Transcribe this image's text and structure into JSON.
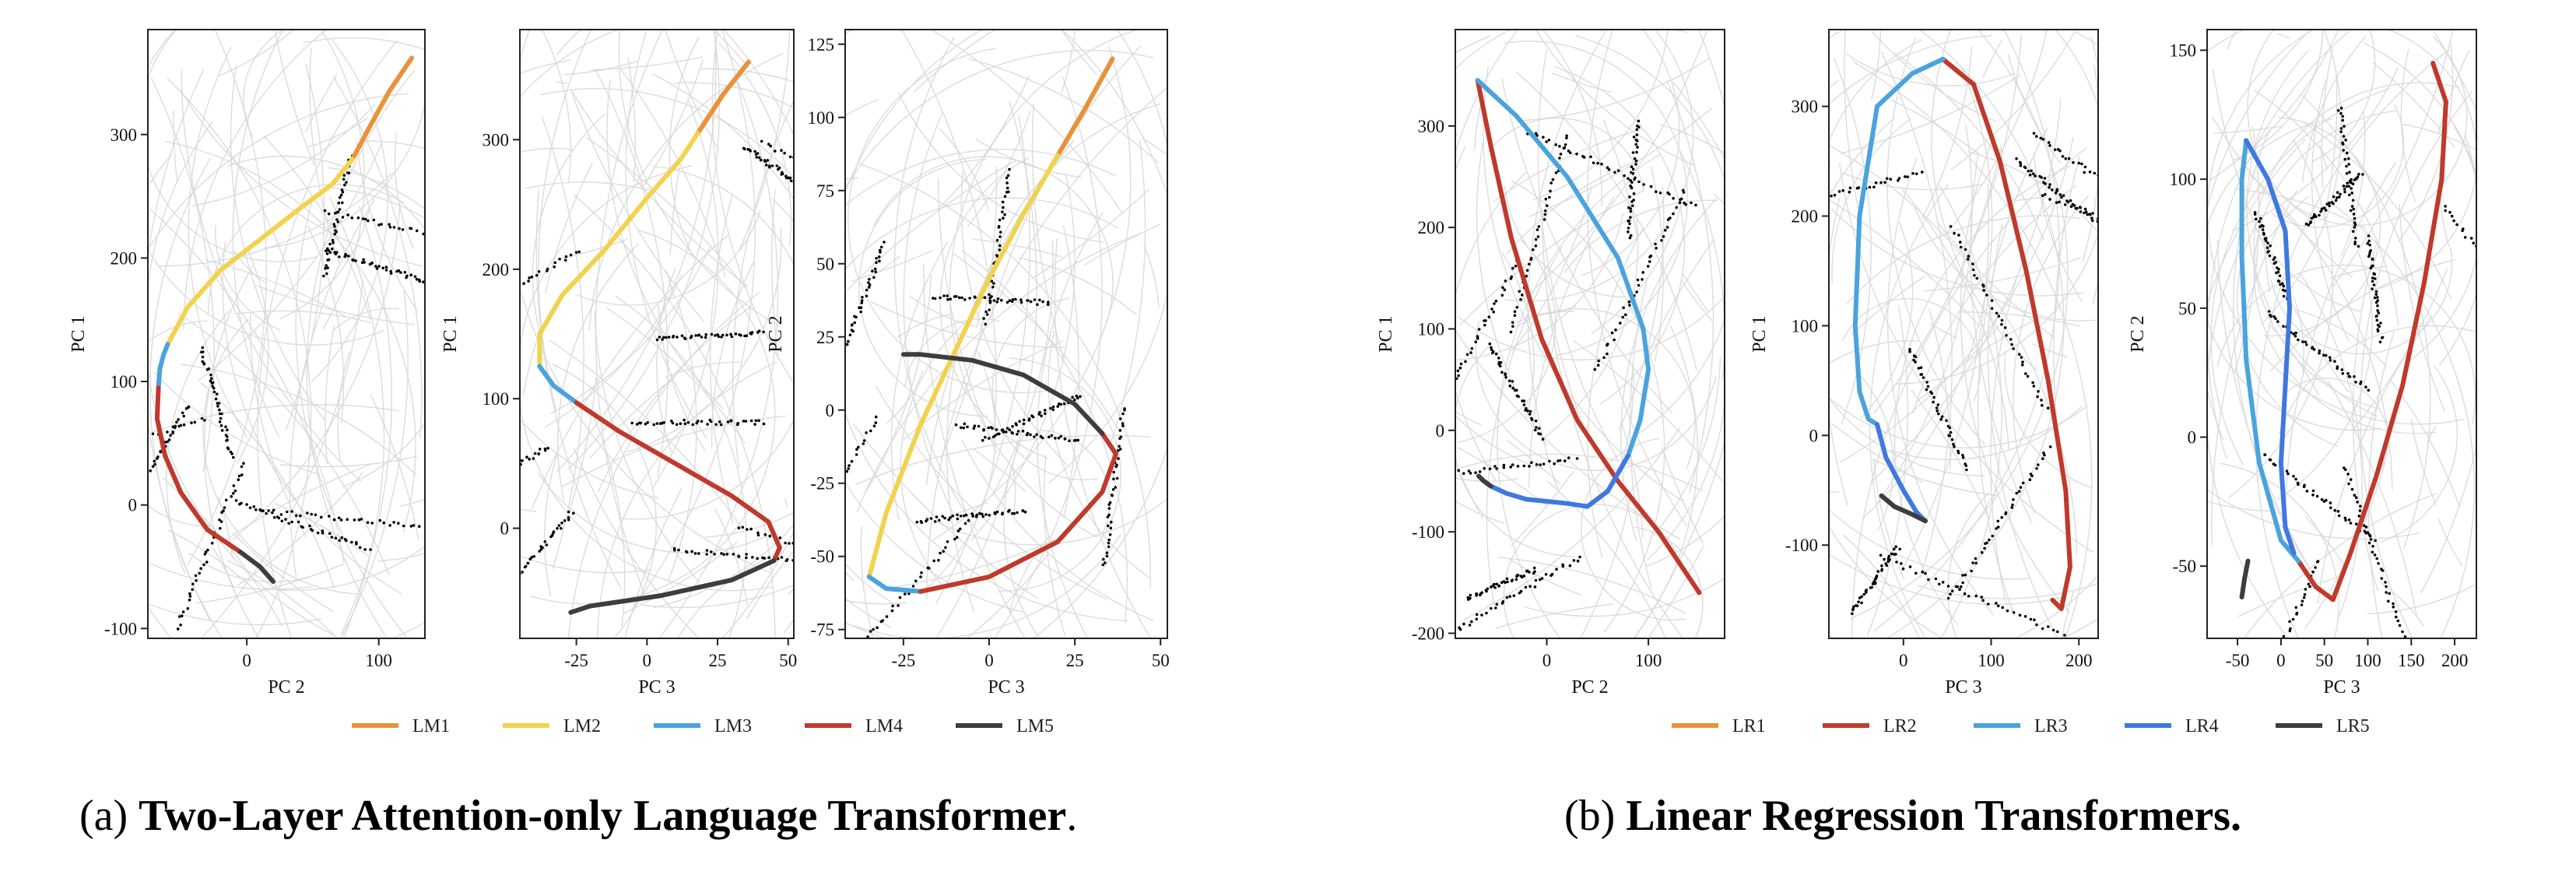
{
  "captions": {
    "a_prefix": "(a) ",
    "a_bold": "Two-Layer Attention-only Language Transformer",
    "a_suffix": ".",
    "b_prefix": "(b) ",
    "b_bold": "Linear Regression Transformers."
  },
  "chart_data": [
    {
      "type": "line",
      "panel": "LM (PC 2 vs PC 1)",
      "xlabel": "PC 2",
      "ylabel": "PC 1",
      "xlim": [
        -75,
        135
      ],
      "ylim": [
        -108,
        385
      ],
      "xticks": [
        0,
        100
      ],
      "yticks": [
        -100,
        0,
        100,
        200,
        300
      ],
      "series": [
        {
          "name": "LM1",
          "color": "#e8923a",
          "x": [
            80,
            95,
            108,
            125
          ],
          "y": [
            280,
            310,
            335,
            362
          ]
        },
        {
          "name": "LM2",
          "color": "#f2d24e",
          "x": [
            -60,
            -45,
            -20,
            10,
            40,
            65,
            80
          ],
          "y": [
            130,
            160,
            190,
            215,
            240,
            260,
            280
          ]
        },
        {
          "name": "LM3",
          "color": "#4aa3de",
          "x": [
            -67,
            -66,
            -63,
            -60
          ],
          "y": [
            95,
            110,
            122,
            130
          ]
        },
        {
          "name": "LM4",
          "color": "#c0392b",
          "x": [
            -67,
            -68,
            -62,
            -50,
            -30,
            -5
          ],
          "y": [
            95,
            70,
            40,
            10,
            -20,
            -38
          ]
        },
        {
          "name": "LM5",
          "color": "#3d3d3d",
          "x": [
            -5,
            10,
            20
          ],
          "y": [
            -38,
            -50,
            -62
          ]
        }
      ]
    },
    {
      "type": "line",
      "panel": "LM (PC 3 vs PC 1)",
      "xlabel": "PC 3",
      "ylabel": "PC 1",
      "xlim": [
        -45,
        52
      ],
      "ylim": [
        -85,
        385
      ],
      "xticks": [
        -25,
        0,
        25,
        50
      ],
      "yticks": [
        0,
        100,
        200,
        300
      ],
      "series": [
        {
          "name": "LM1",
          "color": "#e8923a",
          "x": [
            18,
            27,
            36
          ],
          "y": [
            305,
            335,
            360
          ]
        },
        {
          "name": "LM2",
          "color": "#f2d24e",
          "x": [
            -38,
            -38,
            -30,
            -15,
            0,
            12,
            18
          ],
          "y": [
            125,
            150,
            180,
            215,
            255,
            285,
            305
          ]
        },
        {
          "name": "LM3",
          "color": "#4aa3de",
          "x": [
            -38,
            -33,
            -25
          ],
          "y": [
            125,
            110,
            97
          ]
        },
        {
          "name": "LM4",
          "color": "#c0392b",
          "x": [
            -25,
            -10,
            10,
            30,
            43,
            47,
            45
          ],
          "y": [
            97,
            75,
            50,
            25,
            5,
            -15,
            -25
          ]
        },
        {
          "name": "LM5",
          "color": "#3d3d3d",
          "x": [
            45,
            30,
            5,
            -20,
            -27
          ],
          "y": [
            -25,
            -40,
            -52,
            -60,
            -65
          ]
        }
      ]
    },
    {
      "type": "line",
      "panel": "LM (PC 3 vs PC 2)",
      "xlabel": "PC 3",
      "ylabel": "PC 2",
      "xlim": [
        -42,
        52
      ],
      "ylim": [
        -78,
        130
      ],
      "xticks": [
        -25,
        0,
        25,
        50
      ],
      "yticks": [
        -75,
        -50,
        -25,
        0,
        25,
        50,
        75,
        100,
        125
      ],
      "series": [
        {
          "name": "LM1",
          "color": "#e8923a",
          "x": [
            20,
            28,
            36
          ],
          "y": [
            87,
            103,
            120
          ]
        },
        {
          "name": "LM2",
          "color": "#f2d24e",
          "x": [
            -35,
            -30,
            -20,
            -10,
            0,
            10,
            20
          ],
          "y": [
            -57,
            -35,
            -5,
            20,
            45,
            67,
            87
          ]
        },
        {
          "name": "LM3",
          "color": "#4aa3de",
          "x": [
            -35,
            -30,
            -20
          ],
          "y": [
            -57,
            -61,
            -62
          ]
        },
        {
          "name": "LM4",
          "color": "#c0392b",
          "x": [
            -20,
            0,
            20,
            33,
            37,
            33
          ],
          "y": [
            -62,
            -57,
            -45,
            -28,
            -15,
            -8
          ]
        },
        {
          "name": "LM5",
          "color": "#3d3d3d",
          "x": [
            33,
            25,
            10,
            -5,
            -20,
            -25
          ],
          "y": [
            -8,
            2,
            12,
            17,
            19,
            19
          ]
        }
      ]
    },
    {
      "type": "line",
      "panel": "LR (PC 2 vs PC 1)",
      "xlabel": "PC 2",
      "ylabel": "PC 1",
      "xlim": [
        -90,
        175
      ],
      "ylim": [
        -205,
        395
      ],
      "xticks": [
        0,
        100
      ],
      "yticks": [
        -200,
        -100,
        0,
        100,
        200,
        300
      ],
      "series": [
        {
          "name": "LR1",
          "color": "#e8923a",
          "x": [
            -68
          ],
          "y": [
            345
          ]
        },
        {
          "name": "LR2",
          "color": "#c0392b",
          "x": [
            -68,
            -55,
            -35,
            -5,
            30,
            70,
            110,
            150
          ],
          "y": [
            345,
            280,
            190,
            90,
            10,
            -50,
            -100,
            -160
          ]
        },
        {
          "name": "LR3",
          "color": "#4aa3de",
          "x": [
            -68,
            -30,
            20,
            70,
            95,
            100,
            92,
            80
          ],
          "y": [
            345,
            310,
            250,
            170,
            100,
            60,
            10,
            -25
          ]
        },
        {
          "name": "LR4",
          "color": "#3f78e0",
          "x": [
            80,
            60,
            40,
            20,
            -20,
            -40,
            -55
          ],
          "y": [
            -25,
            -60,
            -75,
            -72,
            -68,
            -62,
            -55
          ]
        },
        {
          "name": "LR5",
          "color": "#3d3d3d",
          "x": [
            -55,
            -62,
            -67
          ],
          "y": [
            -55,
            -50,
            -45
          ]
        }
      ]
    },
    {
      "type": "line",
      "panel": "LR (PC 3 vs PC 1)",
      "xlabel": "PC 3",
      "ylabel": "PC 1",
      "xlim": [
        -85,
        222
      ],
      "ylim": [
        -185,
        370
      ],
      "xticks": [
        0,
        100,
        200
      ],
      "yticks": [
        -100,
        0,
        100,
        200,
        300
      ],
      "series": [
        {
          "name": "LR1",
          "color": "#e8923a",
          "x": [
            45
          ],
          "y": [
            343
          ]
        },
        {
          "name": "LR2",
          "color": "#c0392b",
          "x": [
            45,
            80,
            110,
            140,
            165,
            185,
            190,
            180,
            170
          ],
          "y": [
            343,
            320,
            250,
            150,
            50,
            -50,
            -120,
            -158,
            -150
          ]
        },
        {
          "name": "LR3",
          "color": "#4aa3de",
          "x": [
            45,
            10,
            -30,
            -50,
            -55,
            -50,
            -40,
            -30
          ],
          "y": [
            343,
            330,
            300,
            200,
            100,
            40,
            15,
            10
          ]
        },
        {
          "name": "LR4",
          "color": "#3f78e0",
          "x": [
            -30,
            -20,
            0,
            15,
            25
          ],
          "y": [
            10,
            -20,
            -50,
            -70,
            -78
          ]
        },
        {
          "name": "LR5",
          "color": "#3d3d3d",
          "x": [
            25,
            10,
            -10,
            -25
          ],
          "y": [
            -78,
            -72,
            -65,
            -55
          ]
        }
      ]
    },
    {
      "type": "line",
      "panel": "LR (PC 3 vs PC 2)",
      "xlabel": "PC 3",
      "ylabel": "PC 2",
      "xlim": [
        -85,
        225
      ],
      "ylim": [
        -78,
        158
      ],
      "xticks": [
        -50,
        0,
        50,
        100,
        150,
        200
      ],
      "yticks": [
        -50,
        0,
        50,
        100,
        150
      ],
      "series": [
        {
          "name": "LR1",
          "color": "#e8923a",
          "x": [
            175
          ],
          "y": [
            145
          ]
        },
        {
          "name": "LR2",
          "color": "#c0392b",
          "x": [
            175,
            190,
            185,
            165,
            140,
            110,
            80,
            60,
            40,
            20
          ],
          "y": [
            145,
            130,
            100,
            60,
            20,
            -15,
            -45,
            -63,
            -58,
            -48
          ]
        },
        {
          "name": "LR3",
          "color": "#4aa3de",
          "x": [
            20,
            0,
            -25,
            -40,
            -45,
            -45,
            -40
          ],
          "y": [
            -48,
            -40,
            -10,
            30,
            70,
            100,
            115
          ]
        },
        {
          "name": "LR4",
          "color": "#3f78e0",
          "x": [
            -40,
            -15,
            5,
            10,
            5,
            0,
            5,
            15
          ],
          "y": [
            115,
            100,
            80,
            50,
            20,
            -10,
            -35,
            -45
          ]
        },
        {
          "name": "LR5",
          "color": "#3d3d3d",
          "x": [
            -38,
            -42,
            -45
          ],
          "y": [
            -48,
            -55,
            -62
          ]
        }
      ]
    }
  ],
  "legends": {
    "lm": [
      {
        "name": "LM1",
        "color": "#e8923a"
      },
      {
        "name": "LM2",
        "color": "#f2d24e"
      },
      {
        "name": "LM3",
        "color": "#4aa3de"
      },
      {
        "name": "LM4",
        "color": "#c0392b"
      },
      {
        "name": "LM5",
        "color": "#3d3d3d"
      }
    ],
    "lr": [
      {
        "name": "LR1",
        "color": "#e8923a"
      },
      {
        "name": "LR2",
        "color": "#c0392b"
      },
      {
        "name": "LR3",
        "color": "#4aa3de"
      },
      {
        "name": "LR4",
        "color": "#3f78e0"
      },
      {
        "name": "LR5",
        "color": "#3d3d3d"
      }
    ]
  },
  "colors": {
    "background_curves": "#d8d8d8",
    "frame": "#222222",
    "scatter": "#000000"
  }
}
